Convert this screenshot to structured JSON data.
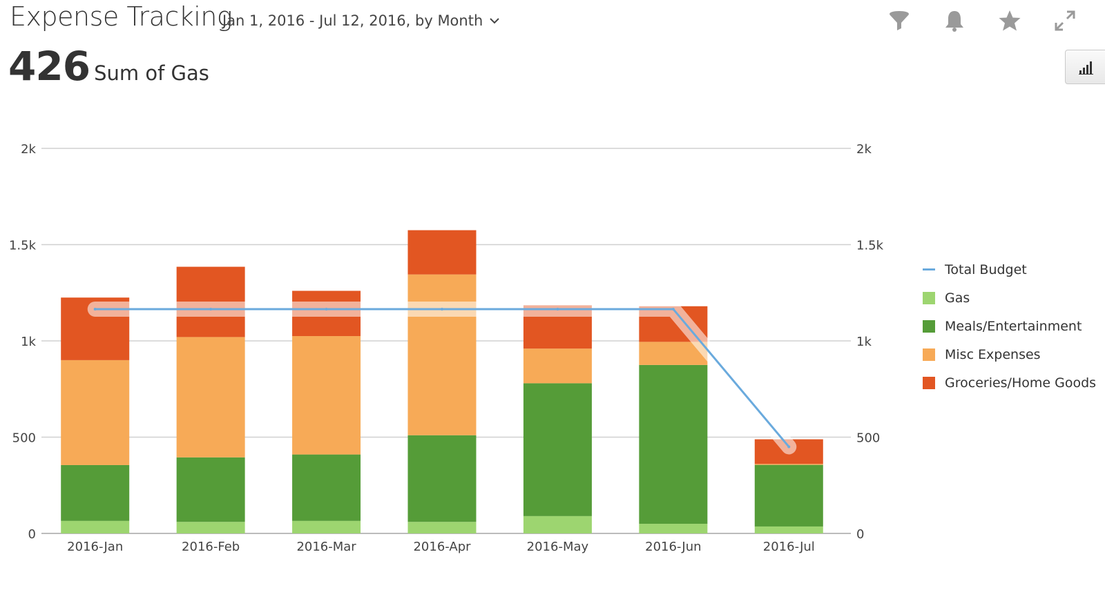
{
  "header": {
    "title": "Expense Tracking",
    "date_range": "Jan 1, 2016 - Jul 12, 2016, by Month"
  },
  "metric": {
    "value": "426",
    "label": "Sum of Gas"
  },
  "toolbar": {
    "icons": [
      "filter-icon",
      "bell-icon",
      "star-icon",
      "expand-icon",
      "bar-chart-icon"
    ]
  },
  "legend": {
    "items": [
      {
        "label": "Total Budget",
        "color": "#6aaadd",
        "kind": "line"
      },
      {
        "label": "Gas",
        "color": "#9dd570",
        "kind": "bar"
      },
      {
        "label": "Meals/Entertainment",
        "color": "#559c38",
        "kind": "bar"
      },
      {
        "label": "Misc Expenses",
        "color": "#f7aa57",
        "kind": "bar"
      },
      {
        "label": "Groceries/Home Goods",
        "color": "#e25622",
        "kind": "bar"
      }
    ]
  },
  "chart_data": {
    "type": "bar",
    "stacked": true,
    "categories": [
      "2016-Jan",
      "2016-Feb",
      "2016-Mar",
      "2016-Apr",
      "2016-May",
      "2016-Jun",
      "2016-Jul"
    ],
    "series": [
      {
        "name": "Gas",
        "color": "#9dd570",
        "values": [
          65,
          60,
          65,
          60,
          90,
          50,
          36
        ]
      },
      {
        "name": "Meals/Entertainment",
        "color": "#559c38",
        "values": [
          290,
          335,
          345,
          450,
          690,
          825,
          320
        ]
      },
      {
        "name": "Misc Expenses",
        "color": "#f7aa57",
        "values": [
          545,
          625,
          615,
          835,
          180,
          120,
          5
        ]
      },
      {
        "name": "Groceries/Home Goods",
        "color": "#e25622",
        "values": [
          325,
          365,
          235,
          230,
          225,
          185,
          128
        ]
      }
    ],
    "line_series": {
      "name": "Total Budget",
      "color": "#6aaadd",
      "values": [
        1165,
        1165,
        1165,
        1165,
        1165,
        1165,
        450
      ]
    },
    "ylim": [
      0,
      2000
    ],
    "y_ticks": [
      0,
      500,
      1000,
      1500,
      2000
    ],
    "y_tick_labels": [
      "0",
      "500",
      "1k",
      "1.5k",
      "2k"
    ],
    "right_axis": true,
    "grid": true,
    "legend_position": "right"
  }
}
